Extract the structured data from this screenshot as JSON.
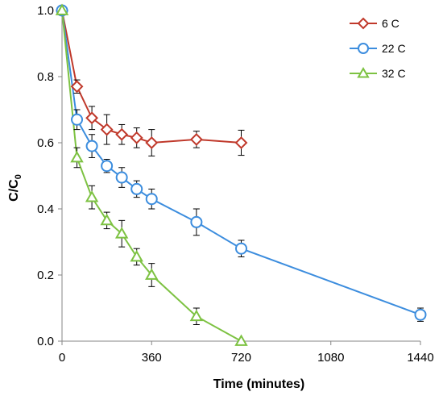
{
  "chart_data": {
    "type": "scatter",
    "title": "",
    "xlabel": "Time (minutes)",
    "ylabel": {
      "main": "C/C",
      "sub": "0"
    },
    "xlim": [
      0,
      1440
    ],
    "ylim": [
      0,
      1.0
    ],
    "xticks": [
      0,
      360,
      720,
      1080,
      1440
    ],
    "yticks": [
      0.0,
      0.2,
      0.4,
      0.6,
      0.8,
      1.0
    ],
    "xtick_labels": [
      "0",
      "360",
      "720",
      "1080",
      "1440"
    ],
    "ytick_labels": [
      "0.0",
      "0.2",
      "0.4",
      "0.6",
      "0.8",
      "1.0"
    ],
    "grid": false,
    "legend_position": "top-right",
    "error_bars": true,
    "series": [
      {
        "name": "6 C",
        "color": "#C0392B",
        "marker": "diamond",
        "x": [
          0,
          60,
          120,
          180,
          240,
          300,
          360,
          540,
          720
        ],
        "y": [
          1.0,
          0.77,
          0.675,
          0.64,
          0.625,
          0.615,
          0.6,
          0.61,
          0.6
        ],
        "err": [
          0.0,
          0.02,
          0.035,
          0.045,
          0.03,
          0.03,
          0.04,
          0.025,
          0.038
        ]
      },
      {
        "name": "22 C",
        "color": "#3C8DDE",
        "marker": "circle",
        "x": [
          0,
          60,
          120,
          180,
          240,
          300,
          360,
          540,
          720,
          1440
        ],
        "y": [
          1.0,
          0.67,
          0.59,
          0.53,
          0.495,
          0.46,
          0.43,
          0.36,
          0.28,
          0.08
        ],
        "err": [
          0.0,
          0.03,
          0.035,
          0.02,
          0.03,
          0.025,
          0.03,
          0.04,
          0.025,
          0.02
        ]
      },
      {
        "name": "32 C",
        "color": "#7DC242",
        "marker": "triangle",
        "x": [
          0,
          60,
          120,
          180,
          240,
          300,
          360,
          540,
          720
        ],
        "y": [
          1.0,
          0.555,
          0.435,
          0.365,
          0.325,
          0.255,
          0.2,
          0.075,
          0.0
        ],
        "err": [
          0.0,
          0.03,
          0.035,
          0.025,
          0.04,
          0.025,
          0.035,
          0.025,
          0.0
        ]
      }
    ]
  }
}
